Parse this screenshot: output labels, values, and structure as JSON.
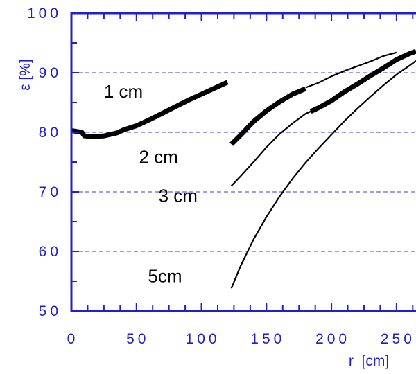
{
  "chart_data": {
    "type": "line",
    "title": "",
    "xlabel": "r  [cm]",
    "ylabel": "ε  [%]",
    "xlim": [
      0,
      265
    ],
    "ylim": [
      50,
      100
    ],
    "x_ticks": [
      "0",
      "50",
      "100",
      "150",
      "200",
      "250"
    ],
    "x_tick_values": [
      0,
      50,
      100,
      150,
      200,
      250
    ],
    "y_ticks": [
      "50",
      "60",
      "70",
      "80",
      "90",
      "100"
    ],
    "y_tick_values": [
      50,
      60,
      70,
      80,
      90,
      100
    ],
    "grid": {
      "horizontal_dashed_at": [
        60,
        70,
        80,
        90
      ]
    },
    "colors": {
      "axis": "#1f1fd0",
      "grid": "#3b3bd6",
      "curve": "#000000"
    },
    "series": [
      {
        "name": "1 cm",
        "style": "thick",
        "x": [
          0,
          8,
          10,
          15,
          25,
          35,
          40,
          50,
          60,
          70,
          80,
          90,
          100,
          110,
          120
        ],
        "y": [
          80.3,
          80.0,
          79.4,
          79.3,
          79.4,
          79.9,
          80.4,
          81.1,
          82.1,
          83.2,
          84.3,
          85.4,
          86.4,
          87.4,
          88.4
        ]
      },
      {
        "name": "2 cm",
        "style": "thick",
        "x": [
          123,
          130,
          140,
          150,
          160,
          170,
          180
        ],
        "y": [
          78.0,
          79.5,
          81.8,
          83.6,
          85.1,
          86.4,
          87.3
        ]
      },
      {
        "name": "2 cm",
        "style": "thin",
        "x": [
          180,
          190,
          200,
          210,
          220,
          230,
          240,
          250
        ],
        "y": [
          87.5,
          88.3,
          89.4,
          90.3,
          91.1,
          91.9,
          92.8,
          93.4
        ]
      },
      {
        "name": "",
        "style": "thick",
        "x": [
          184,
          190,
          200,
          210,
          220,
          230,
          240,
          250,
          260,
          265
        ],
        "y": [
          83.5,
          84.1,
          85.3,
          86.8,
          88.1,
          89.5,
          90.8,
          92.2,
          93.2,
          93.6
        ]
      },
      {
        "name": "3 cm",
        "style": "thin",
        "x": [
          123,
          130,
          140,
          150,
          160,
          170,
          180,
          184
        ],
        "y": [
          71.0,
          72.6,
          75.0,
          77.5,
          79.7,
          81.5,
          83.1,
          83.5
        ]
      },
      {
        "name": "5cm",
        "style": "thin",
        "x": [
          123,
          130,
          140,
          150,
          160,
          170,
          180,
          190,
          200,
          210,
          220,
          230,
          240,
          250,
          260,
          265
        ],
        "y": [
          53.8,
          57.5,
          62.0,
          65.8,
          69.2,
          72.2,
          74.9,
          77.3,
          79.6,
          81.9,
          84.0,
          86.0,
          87.9,
          89.7,
          91.2,
          92.0
        ]
      }
    ],
    "annotations": [
      {
        "text": "1 cm",
        "x": 40,
        "y": 85.8
      },
      {
        "text": "2 cm",
        "x": 67,
        "y": 74.8
      },
      {
        "text": "3 cm",
        "x": 82,
        "y": 68.3
      },
      {
        "text": "5cm",
        "x": 72,
        "y": 54.8
      }
    ]
  }
}
